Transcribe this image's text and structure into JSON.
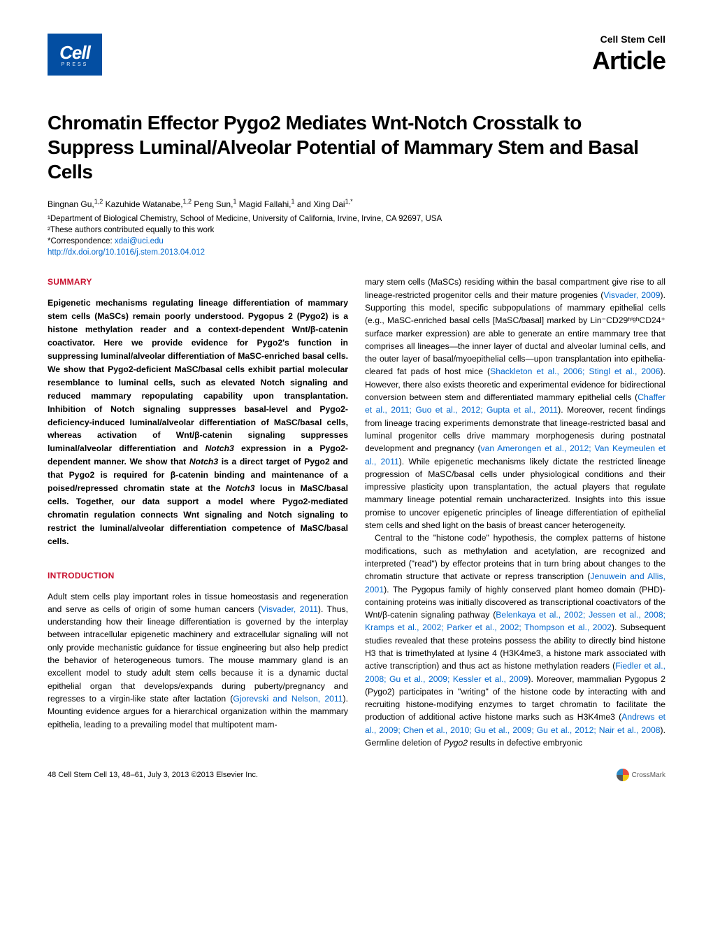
{
  "header": {
    "logo_main": "Cell",
    "logo_sub": "PRESS",
    "journal": "Cell Stem Cell",
    "article_label": "Article"
  },
  "title": "Chromatin Effector Pygo2 Mediates Wnt-Notch Crosstalk to Suppress Luminal/Alveolar Potential of Mammary Stem and Basal Cells",
  "authors_html": "Bingnan Gu,<sup>1,2</sup> Kazuhide Watanabe,<sup>1,2</sup> Peng Sun,<sup>1</sup> Magid Fallahi,<sup>1</sup> and Xing Dai<sup>1,*</sup>",
  "affiliations": {
    "line1": "¹Department of Biological Chemistry, School of Medicine, University of California, Irvine, Irvine, CA 92697, USA",
    "line2": "²These authors contributed equally to this work",
    "corr_label": "*Correspondence: ",
    "corr_email": "xdai@uci.edu",
    "doi": "http://dx.doi.org/10.1016/j.stem.2013.04.012"
  },
  "summary": {
    "heading": "SUMMARY",
    "text": "Epigenetic mechanisms regulating lineage differentiation of mammary stem cells (MaSCs) remain poorly understood. Pygopus 2 (Pygo2) is a histone methylation reader and a context-dependent Wnt/β-catenin coactivator. Here we provide evidence for Pygo2's function in suppressing luminal/alveolar differentiation of MaSC-enriched basal cells. We show that Pygo2-deficient MaSC/basal cells exhibit partial molecular resemblance to luminal cells, such as elevated Notch signaling and reduced mammary repopulating capability upon transplantation. Inhibition of Notch signaling suppresses basal-level and Pygo2-deficiency-induced luminal/alveolar differentiation of MaSC/basal cells, whereas activation of Wnt/β-catenin signaling suppresses luminal/alveolar differentiation and Notch3 expression in a Pygo2-dependent manner. We show that Notch3 is a direct target of Pygo2 and that Pygo2 is required for β-catenin binding and maintenance of a poised/repressed chromatin state at the Notch3 locus in MaSC/basal cells. Together, our data support a model where Pygo2-mediated chromatin regulation connects Wnt signaling and Notch signaling to restrict the luminal/alveolar differentiation competence of MaSC/basal cells."
  },
  "intro": {
    "heading": "INTRODUCTION",
    "left_text": "Adult stem cells play important roles in tissue homeostasis and regeneration and serve as cells of origin of some human cancers (Visvader, 2011). Thus, understanding how their lineage differentiation is governed by the interplay between intracellular epigenetic machinery and extracellular signaling will not only provide mechanistic guidance for tissue engineering but also help predict the behavior of heterogeneous tumors. The mouse mammary gland is an excellent model to study adult stem cells because it is a dynamic ductal epithelial organ that develops/expands during puberty/pregnancy and regresses to a virgin-like state after lactation (Gjorevski and Nelson, 2011). Mounting evidence argues for a hierarchical organization within the mammary epithelia, leading to a prevailing model that multipotent mam-"
  },
  "right_col": {
    "para1": "mary stem cells (MaSCs) residing within the basal compartment give rise to all lineage-restricted progenitor cells and their mature progenies (Visvader, 2009). Supporting this model, specific subpopulations of mammary epithelial cells (e.g., MaSC-enriched basal cells [MaSC/basal] marked by Lin⁻CD29ʰⁱᵍʰCD24⁺ surface marker expression) are able to generate an entire mammary tree that comprises all lineages—the inner layer of ductal and alveolar luminal cells, and the outer layer of basal/myoepithelial cells—upon transplantation into epithelia-cleared fat pads of host mice (Shackleton et al., 2006; Stingl et al., 2006). However, there also exists theoretic and experimental evidence for bidirectional conversion between stem and differentiated mammary epithelial cells (Chaffer et al., 2011; Guo et al., 2012; Gupta et al., 2011). Moreover, recent findings from lineage tracing experiments demonstrate that lineage-restricted basal and luminal progenitor cells drive mammary morphogenesis during postnatal development and pregnancy (van Amerongen et al., 2012; Van Keymeulen et al., 2011). While epigenetic mechanisms likely dictate the restricted lineage progression of MaSC/basal cells under physiological conditions and their impressive plasticity upon transplantation, the actual players that regulate mammary lineage potential remain uncharacterized. Insights into this issue promise to uncover epigenetic principles of lineage differentiation of epithelial stem cells and shed light on the basis of breast cancer heterogeneity.",
    "para2": "Central to the \"histone code\" hypothesis, the complex patterns of histone modifications, such as methylation and acetylation, are recognized and interpreted (\"read\") by effector proteins that in turn bring about changes to the chromatin structure that activate or repress transcription (Jenuwein and Allis, 2001). The Pygopus family of highly conserved plant homeo domain (PHD)-containing proteins was initially discovered as transcriptional coactivators of the Wnt/β-catenin signaling pathway (Belenkaya et al., 2002; Jessen et al., 2008; Kramps et al., 2002; Parker et al., 2002; Thompson et al., 2002). Subsequent studies revealed that these proteins possess the ability to directly bind histone H3 that is trimethylated at lysine 4 (H3K4me3, a histone mark associated with active transcription) and thus act as histone methylation readers (Fiedler et al., 2008; Gu et al., 2009; Kessler et al., 2009). Moreover, mammalian Pygopus 2 (Pygo2) participates in \"writing\" of the histone code by interacting with and recruiting histone-modifying enzymes to target chromatin to facilitate the production of additional active histone marks such as H3K4me3 (Andrews et al., 2009; Chen et al., 2010; Gu et al., 2009; Gu et al., 2012; Nair et al., 2008). Germline deletion of Pygo2 results in defective embryonic"
  },
  "footer": {
    "citation": "48   Cell Stem Cell 13, 48–61, July 3, 2013 ©2013 Elsevier Inc.",
    "crossmark": "CrossMark"
  }
}
